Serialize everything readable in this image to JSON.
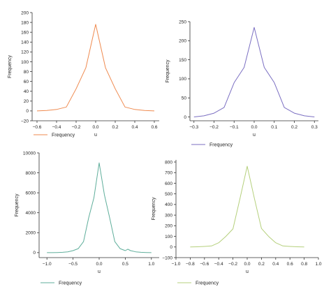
{
  "chart_data": [
    {
      "type": "line",
      "xlabel": "u",
      "ylabel": "Frequency",
      "xlim": [
        -0.65,
        0.65
      ],
      "ylim": [
        -20,
        200
      ],
      "xticks": [
        -0.6,
        -0.4,
        -0.2,
        0.0,
        0.2,
        0.4,
        0.6
      ],
      "xtick_labels": [
        "−0.6",
        "−0.4",
        "−0.2",
        "0.0",
        "0.2",
        "0.4",
        "0.6"
      ],
      "yticks": [
        -20,
        0,
        20,
        40,
        60,
        80,
        100,
        120,
        140,
        160,
        180,
        200
      ],
      "ytick_labels": [
        "−20",
        "0",
        "20",
        "40",
        "60",
        "80",
        "100",
        "120",
        "140",
        "160",
        "180",
        "200"
      ],
      "series": [
        {
          "name": "Frequency",
          "color": "#ef8a4f",
          "x": [
            -0.6,
            -0.5,
            -0.4,
            -0.3,
            -0.2,
            -0.1,
            0.0,
            0.1,
            0.2,
            0.3,
            0.4,
            0.5,
            0.6
          ],
          "y": [
            0,
            1,
            3,
            8,
            45,
            88,
            176,
            88,
            45,
            8,
            3,
            1,
            0
          ]
        }
      ]
    },
    {
      "type": "line",
      "xlabel": "u",
      "ylabel": "Frequency",
      "xlim": [
        -0.32,
        0.32
      ],
      "ylim": [
        -10,
        250
      ],
      "xticks": [
        -0.3,
        -0.2,
        -0.1,
        0.0,
        0.1,
        0.2,
        0.3
      ],
      "xtick_labels": [
        "−0.3",
        "−0.2",
        "−0.1",
        "0.0",
        "0.1",
        "0.2",
        "0.3"
      ],
      "yticks": [
        0,
        50,
        100,
        150,
        200,
        250
      ],
      "ytick_labels": [
        "0",
        "50",
        "100",
        "150",
        "200",
        "250"
      ],
      "series": [
        {
          "name": "Frequency",
          "color": "#7b6fc2",
          "x": [
            -0.3,
            -0.25,
            -0.2,
            -0.15,
            -0.1,
            -0.05,
            0.0,
            0.05,
            0.1,
            0.15,
            0.2,
            0.25,
            0.3
          ],
          "y": [
            0,
            3,
            10,
            25,
            90,
            130,
            235,
            130,
            90,
            25,
            10,
            3,
            0
          ]
        }
      ]
    },
    {
      "type": "line",
      "xlabel": "u",
      "ylabel": "Frequency",
      "xlim": [
        -1.15,
        1.15
      ],
      "ylim": [
        -500,
        10000
      ],
      "xticks": [
        -1.0,
        -0.5,
        0.0,
        0.5,
        1.0
      ],
      "xtick_labels": [
        "−1.0",
        "−0.5",
        "0.0",
        "0.5",
        "1.0"
      ],
      "yticks": [
        0,
        2000,
        4000,
        6000,
        8000,
        10000
      ],
      "ytick_labels": [
        "0",
        "2000",
        "4000",
        "6000",
        "8000",
        "10000"
      ],
      "series": [
        {
          "name": "Frequency",
          "color": "#5fae9b",
          "x": [
            -1.0,
            -0.9,
            -0.8,
            -0.7,
            -0.6,
            -0.5,
            -0.4,
            -0.3,
            -0.2,
            -0.1,
            0.0,
            0.1,
            0.2,
            0.3,
            0.4,
            0.5,
            0.55,
            0.6,
            0.7,
            0.8,
            0.9,
            1.0
          ],
          "y": [
            0,
            0,
            10,
            30,
            80,
            200,
            400,
            1100,
            3500,
            5500,
            9000,
            5800,
            3500,
            1100,
            400,
            200,
            350,
            200,
            80,
            30,
            10,
            0
          ]
        }
      ]
    },
    {
      "type": "line",
      "xlabel": "u",
      "ylabel": "Frequency",
      "xlim": [
        -1.0,
        1.0
      ],
      "ylim": [
        -100,
        820
      ],
      "xticks": [
        -1.0,
        -0.8,
        -0.6,
        -0.4,
        -0.2,
        0.0,
        0.2,
        0.4,
        0.6,
        0.8,
        1.0
      ],
      "xtick_labels": [
        "−1.0",
        "−0.8",
        "−0.6",
        "−0.4",
        "−0.2",
        "0.0",
        "0.2",
        "0.4",
        "0.6",
        "0.8",
        "1.0"
      ],
      "yticks": [
        -100,
        0,
        100,
        200,
        300,
        400,
        500,
        600,
        700,
        800
      ],
      "ytick_labels": [
        "−100",
        "0",
        "100",
        "200",
        "300",
        "400",
        "500",
        "600",
        "700",
        "800"
      ],
      "series": [
        {
          "name": "Frequency",
          "color": "#b5d07c",
          "x": [
            -0.8,
            -0.7,
            -0.6,
            -0.5,
            -0.4,
            -0.3,
            -0.2,
            -0.1,
            0.0,
            0.1,
            0.2,
            0.3,
            0.4,
            0.5,
            0.6,
            0.7,
            0.8
          ],
          "y": [
            0,
            2,
            5,
            10,
            40,
            100,
            170,
            460,
            760,
            460,
            175,
            100,
            40,
            10,
            5,
            2,
            0
          ]
        }
      ]
    }
  ]
}
